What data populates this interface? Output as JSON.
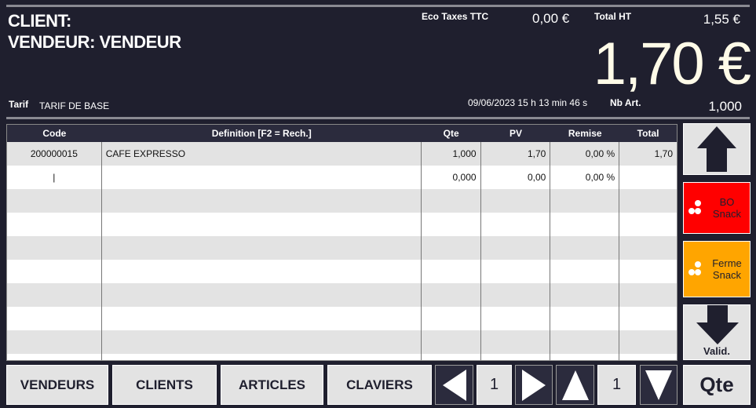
{
  "header": {
    "client_label": "CLIENT:",
    "vendeur_label": "VENDEUR: VENDEUR",
    "eco_label": "Eco Taxes TTC",
    "eco_value": "0,00 €",
    "total_ht_label": "Total HT",
    "total_ht_value": "1,55 €",
    "total_ttc": "1,70 €",
    "tarif_label": "Tarif",
    "tarif_value": "TARIF DE BASE",
    "datetime": "09/06/2023 15 h 13 min 46 s",
    "nb_art_label": "Nb Art.",
    "nb_art_value": "1,000"
  },
  "table": {
    "columns": [
      "Code",
      "Definition [F2 = Rech.]",
      "Qte",
      "PV",
      "Remise",
      "Total"
    ],
    "rows": [
      [
        "200000015",
        "CAFE EXPRESSO",
        "1,000",
        "1,70",
        "0,00 %",
        "1,70"
      ],
      [
        "|",
        "",
        "0,000",
        "0,00",
        "0,00 %",
        ""
      ]
    ]
  },
  "side": {
    "bo_label": "BO Snack",
    "bo_color": "#ff0000",
    "ferme_label": "Ferme Snack",
    "ferme_color": "#ffa500",
    "valid_label": "Valid.",
    "qte_label": "Qte"
  },
  "bottom": {
    "vendeurs": "VENDEURS",
    "clients": "CLIENTS",
    "articles": "ARTICLES",
    "claviers": "CLAVIERS",
    "page_h": "1",
    "page_v": "1"
  }
}
